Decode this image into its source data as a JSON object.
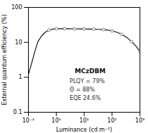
{
  "chart_data": {
    "type": "line",
    "xlabel": "Luminance (cd m⁻²)",
    "ylabel": "External quantum efficiency (%)",
    "x": [
      0.1,
      0.13,
      0.17,
      0.22,
      0.3,
      0.4,
      0.55,
      0.75,
      1.0,
      1.4,
      2.0,
      3.0,
      4.5,
      7.0,
      10.0,
      15.0,
      22.0,
      33.0,
      50.0,
      75.0,
      100.0,
      150.0,
      220.0,
      330.0,
      500.0,
      750.0,
      1000.0
    ],
    "series": [
      {
        "type": "line",
        "color": "#111111",
        "values": [
          1.2,
          2.5,
          5.5,
          10.5,
          15.5,
          19.5,
          22.5,
          23.8,
          24.5,
          24.6,
          24.5,
          24.4,
          24.3,
          24.2,
          24.1,
          24.0,
          23.8,
          23.5,
          23.0,
          22.2,
          21.2,
          19.5,
          17.0,
          14.0,
          10.5,
          7.5,
          5.5
        ]
      },
      {
        "type": "scatter",
        "color": "#666666",
        "marker": "circle",
        "x": [
          0.55,
          1.0,
          2.0,
          4.5,
          10.0,
          22.0,
          50.0,
          100.0,
          220.0,
          500.0,
          1000.0
        ],
        "values": [
          22.5,
          24.5,
          24.5,
          24.3,
          24.1,
          23.8,
          23.0,
          21.2,
          17.0,
          10.5,
          5.5
        ]
      }
    ],
    "log": true,
    "xlim": [
      0.1,
      1000
    ],
    "ylim": [
      0.1,
      100
    ],
    "xticks": [
      {
        "value": 0.1,
        "label": "10⁻¹"
      },
      {
        "value": 1,
        "label": "10⁰"
      },
      {
        "value": 10,
        "label": "10¹"
      },
      {
        "value": 100,
        "label": "10²"
      },
      {
        "value": 1000,
        "label": "10³"
      }
    ],
    "yticks": [
      0.1,
      1,
      10,
      100
    ],
    "grid": false,
    "annotations": [
      "MCzDBM",
      "PLQY = 79%",
      "Θ = 88%",
      "EQE 24.6%"
    ]
  }
}
